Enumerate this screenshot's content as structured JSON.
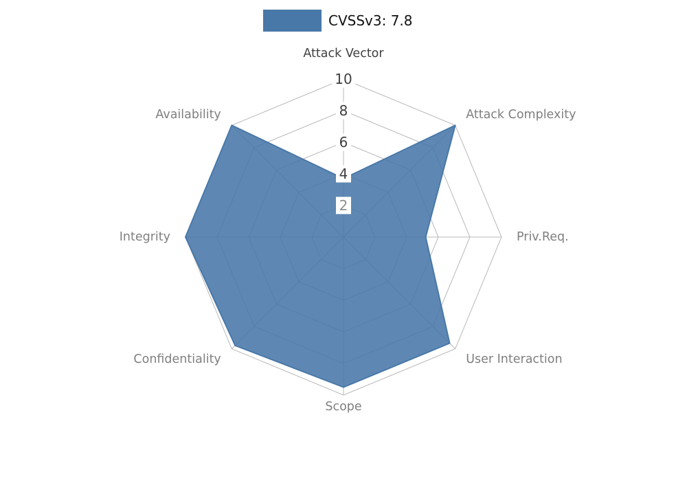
{
  "legend": {
    "label": "CVSSv3: 7.8",
    "swatch_color": "#4878a8"
  },
  "chart_data": {
    "type": "radar",
    "title": "CVSSv3: 7.8",
    "categories": [
      "Attack Vector",
      "Attack Complexity",
      "Priv.Req.",
      "User Interaction",
      "Scope",
      "Confidentiality",
      "Integrity",
      "Availability"
    ],
    "series": [
      {
        "name": "CVSSv3: 7.8",
        "values": [
          3.7,
          10,
          5.2,
          9.5,
          9.5,
          9.7,
          10,
          10
        ]
      }
    ],
    "axis_range": [
      0,
      10
    ],
    "ticks": [
      2,
      4,
      6,
      8,
      10
    ],
    "tick_colors": [
      "#8f8f8f",
      "#3f3f3f",
      "#3f3f3f",
      "#3f3f3f",
      "#3f3f3f"
    ],
    "category_colors": [
      "#3f3f3f",
      "#7f7f7f",
      "#7f7f7f",
      "#7f7f7f",
      "#7f7f7f",
      "#7f7f7f",
      "#7f7f7f",
      "#7f7f7f"
    ],
    "fill_color": "#4878a8",
    "grid_color": "#b8b8b8",
    "legend_position": "top-center",
    "grid": true
  }
}
